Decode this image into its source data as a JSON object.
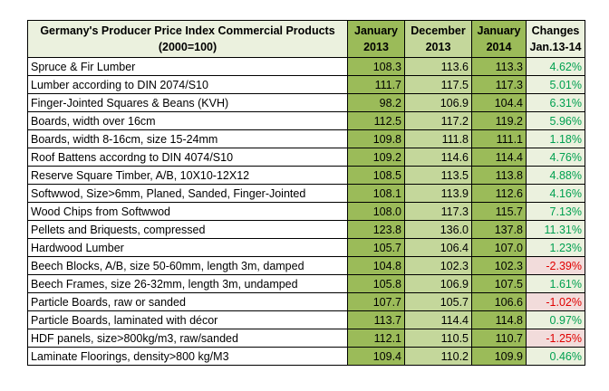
{
  "table": {
    "title": [
      "Germany's Producer Price Index Commercial Products",
      "(2000=100)"
    ],
    "columns": [
      [
        "January",
        "2013"
      ],
      [
        "December",
        "2013"
      ],
      [
        "January",
        "2014"
      ],
      [
        "Changes",
        "Jan.13-14"
      ]
    ],
    "rows": [
      [
        "Spruce & Fir Lumber",
        "108.3",
        "113.6",
        "113.3",
        "4.62%"
      ],
      [
        "Lumber according to DIN 2074/S10",
        "111.7",
        "117.5",
        "117.3",
        "5.01%"
      ],
      [
        "Finger-Jointed Squares & Beans (KVH)",
        "98.2",
        "106.9",
        "104.4",
        "6.31%"
      ],
      [
        "Boards, width over 16cm",
        "112.5",
        "117.2",
        "119.2",
        "5.96%"
      ],
      [
        "Boards, width 8-16cm, size 15-24mm",
        "109.8",
        "111.8",
        "111.1",
        "1.18%"
      ],
      [
        "Roof Battens accordng to DIN 4074/S10",
        "109.2",
        "114.6",
        "114.4",
        "4.76%"
      ],
      [
        "Reserve Square Timber, A/B, 10X10-12X12",
        "108.5",
        "113.5",
        "113.8",
        "4.88%"
      ],
      [
        "Softwwod, Size>6mm, Planed, Sanded, Finger-Jointed",
        "108.1",
        "113.9",
        "112.6",
        "4.16%"
      ],
      [
        "Wood Chips from Softwwod",
        "108.0",
        "117.3",
        "115.7",
        "7.13%"
      ],
      [
        "Pellets and Briquests, compressed",
        "123.8",
        "136.0",
        "137.8",
        "11.31%"
      ],
      [
        "Hardwood Lumber",
        "105.7",
        "106.4",
        "107.0",
        "1.23%"
      ],
      [
        "Beech Blocks, A/B, size 50-60mm, length 3m, damped",
        "104.8",
        "102.3",
        "102.3",
        "-2.39%"
      ],
      [
        "Beech Frames, size 26-32mm, length 3m, undamped",
        "105.8",
        "106.9",
        "107.5",
        "1.61%"
      ],
      [
        "Particle Boards, raw or sanded",
        "107.7",
        "105.7",
        "106.6",
        "-1.02%"
      ],
      [
        "Particle Boards, laminated with décor",
        "113.7",
        "114.4",
        "114.8",
        "0.97%"
      ],
      [
        "HDF panels, size>800kg/m3, raw/sanded",
        "112.1",
        "110.5",
        "110.7",
        "-1.25%"
      ],
      [
        "Laminate Floorings, density>800 kg/M3",
        "109.4",
        "110.2",
        "109.9",
        "0.46%"
      ]
    ]
  }
}
